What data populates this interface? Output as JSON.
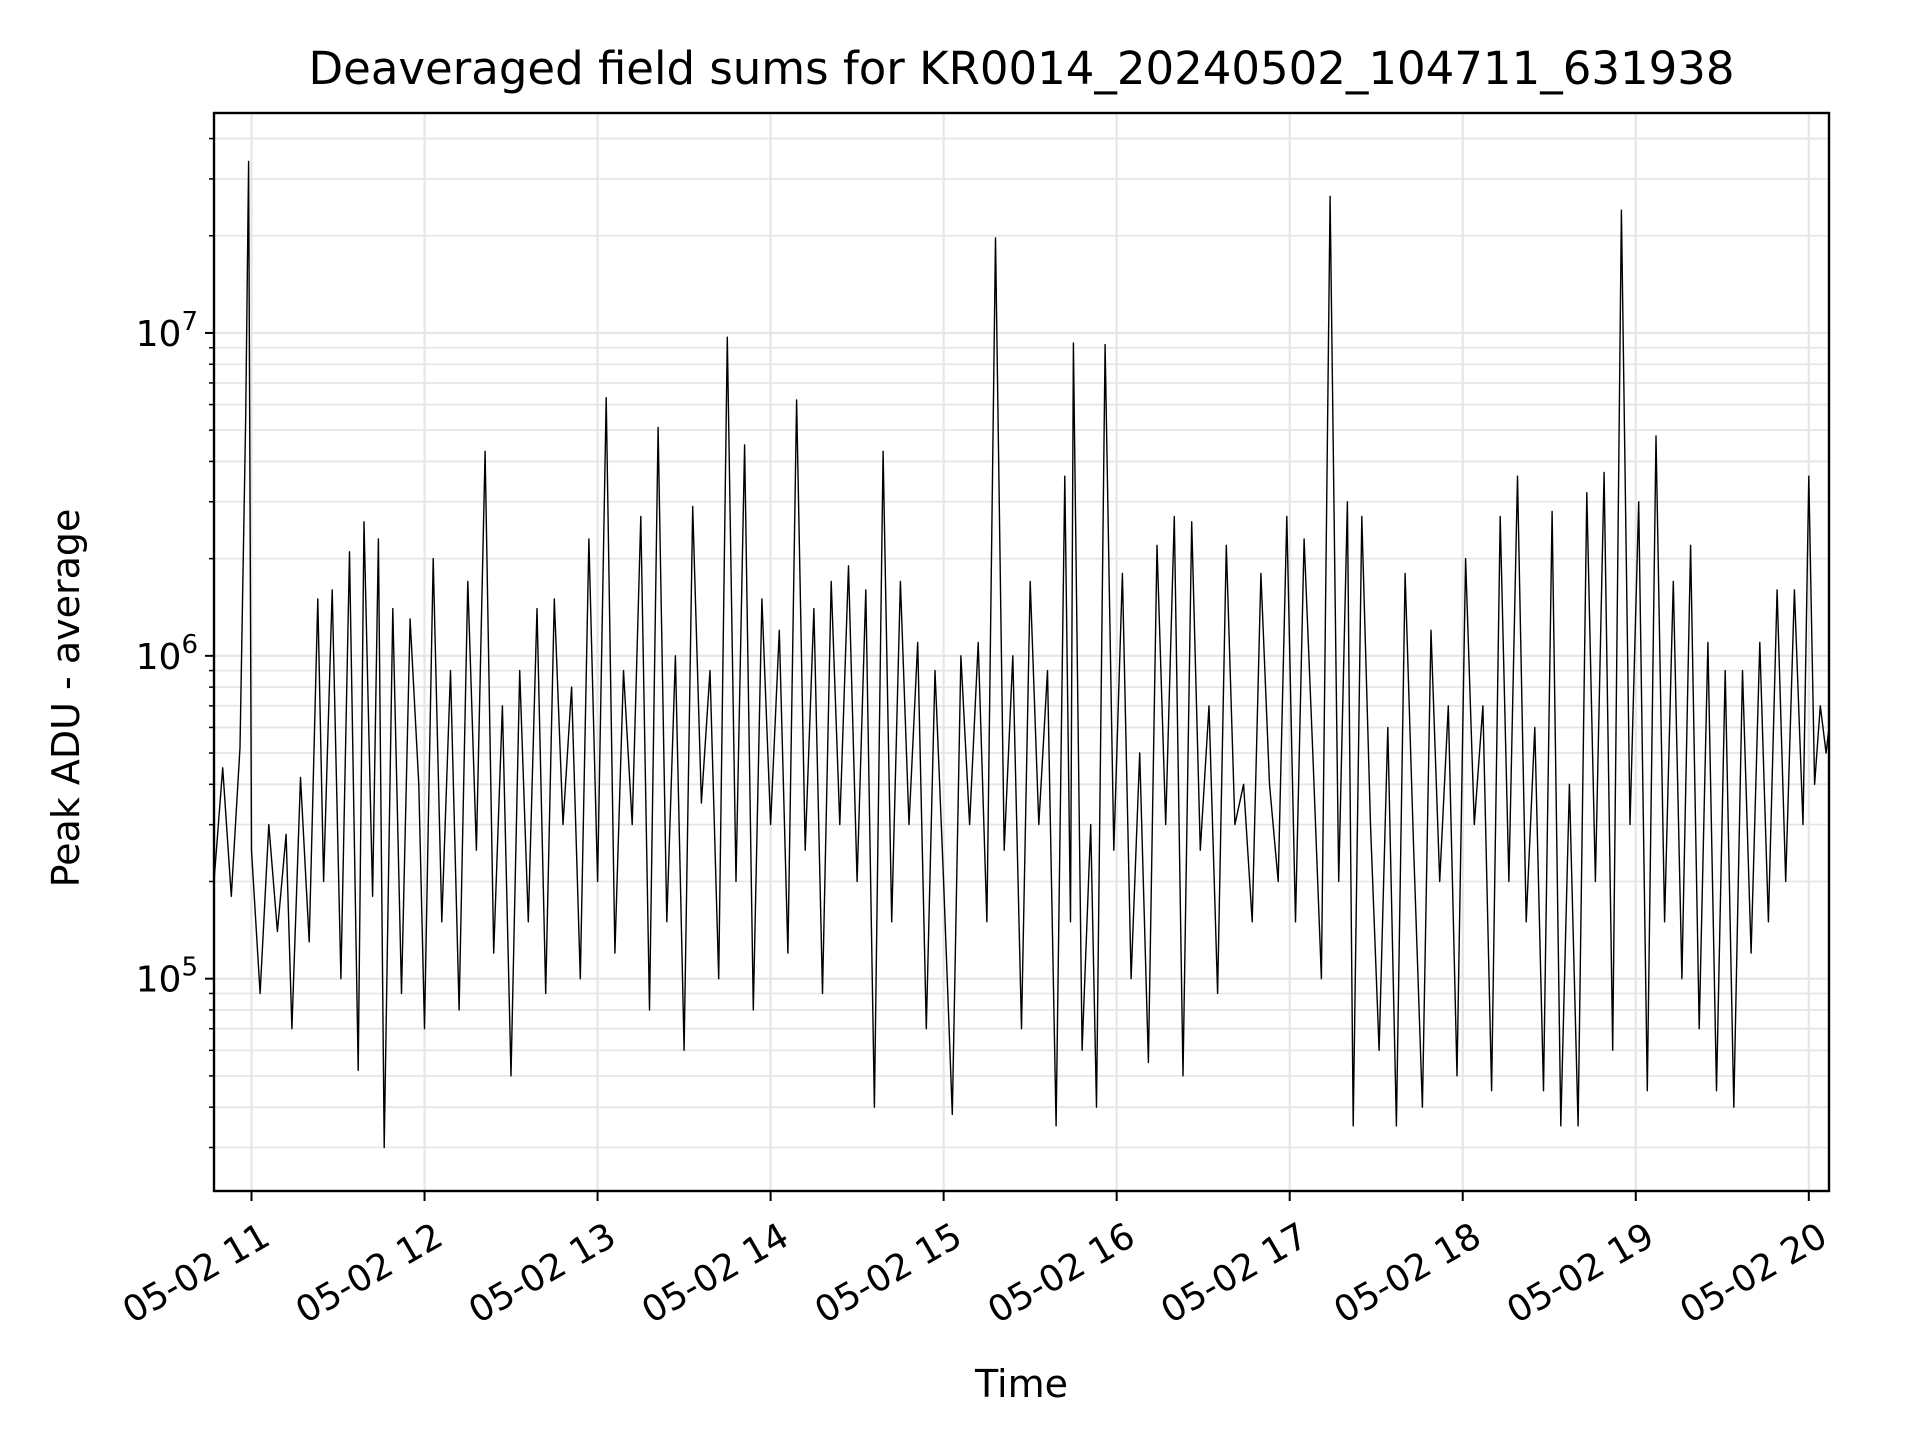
{
  "chart_data": {
    "type": "line",
    "title": "Deaveraged field sums for KR0014_20240502_104711_631938",
    "xlabel": "Time",
    "ylabel": "Peak ADU - average",
    "x_type": "datetime",
    "xlim": [
      "2024-05-02 10:47",
      "2024-05-02 20:07"
    ],
    "x_ticks": [
      "05-02 11",
      "05-02 12",
      "05-02 13",
      "05-02 14",
      "05-02 15",
      "05-02 16",
      "05-02 17",
      "05-02 18",
      "05-02 19",
      "05-02 20"
    ],
    "y_scale": "log",
    "ylim": [
      22000,
      48000000
    ],
    "y_ticks": [
      {
        "value": 100000,
        "base": "10",
        "exp": "5"
      },
      {
        "value": 1000000,
        "base": "10",
        "exp": "6"
      },
      {
        "value": 10000000,
        "base": "10",
        "exp": "7"
      }
    ],
    "grid": true,
    "line_color": "#000000",
    "grid_color": "#e6e6e6",
    "series": [
      {
        "points": [
          [
            "10:47",
            200000
          ],
          [
            "10:50",
            450000
          ],
          [
            "10:53",
            180000
          ],
          [
            "10:56",
            520000
          ],
          [
            "10:58",
            5500000
          ],
          [
            "10:59",
            34000000
          ],
          [
            "11:00",
            250000
          ],
          [
            "11:03",
            90000
          ],
          [
            "11:06",
            300000
          ],
          [
            "11:09",
            140000
          ],
          [
            "11:12",
            280000
          ],
          [
            "11:14",
            70000
          ],
          [
            "11:17",
            420000
          ],
          [
            "11:20",
            130000
          ],
          [
            "11:23",
            1500000
          ],
          [
            "11:25",
            200000
          ],
          [
            "11:28",
            1600000
          ],
          [
            "11:31",
            100000
          ],
          [
            "11:34",
            2100000
          ],
          [
            "11:37",
            52000
          ],
          [
            "11:39",
            2600000
          ],
          [
            "11:42",
            180000
          ],
          [
            "11:44",
            2300000
          ],
          [
            "11:46",
            30000
          ],
          [
            "11:49",
            1400000
          ],
          [
            "11:52",
            90000
          ],
          [
            "11:55",
            1300000
          ],
          [
            "11:58",
            400000
          ],
          [
            "12:00",
            70000
          ],
          [
            "12:03",
            2000000
          ],
          [
            "12:06",
            150000
          ],
          [
            "12:09",
            900000
          ],
          [
            "12:12",
            80000
          ],
          [
            "12:15",
            1700000
          ],
          [
            "12:18",
            250000
          ],
          [
            "12:21",
            4300000
          ],
          [
            "12:24",
            120000
          ],
          [
            "12:27",
            700000
          ],
          [
            "12:30",
            50000
          ],
          [
            "12:33",
            900000
          ],
          [
            "12:36",
            150000
          ],
          [
            "12:39",
            1400000
          ],
          [
            "12:42",
            90000
          ],
          [
            "12:45",
            1500000
          ],
          [
            "12:48",
            300000
          ],
          [
            "12:51",
            800000
          ],
          [
            "12:54",
            100000
          ],
          [
            "12:57",
            2300000
          ],
          [
            "13:00",
            200000
          ],
          [
            "13:03",
            6300000
          ],
          [
            "13:06",
            120000
          ],
          [
            "13:09",
            900000
          ],
          [
            "13:12",
            300000
          ],
          [
            "13:15",
            2700000
          ],
          [
            "13:18",
            80000
          ],
          [
            "13:21",
            5100000
          ],
          [
            "13:24",
            150000
          ],
          [
            "13:27",
            1000000
          ],
          [
            "13:30",
            60000
          ],
          [
            "13:33",
            2900000
          ],
          [
            "13:36",
            350000
          ],
          [
            "13:39",
            900000
          ],
          [
            "13:42",
            100000
          ],
          [
            "13:45",
            9700000
          ],
          [
            "13:48",
            200000
          ],
          [
            "13:51",
            4500000
          ],
          [
            "13:54",
            80000
          ],
          [
            "13:57",
            1500000
          ],
          [
            "14:00",
            300000
          ],
          [
            "14:03",
            1200000
          ],
          [
            "14:06",
            120000
          ],
          [
            "14:09",
            6200000
          ],
          [
            "14:12",
            250000
          ],
          [
            "14:15",
            1400000
          ],
          [
            "14:18",
            90000
          ],
          [
            "14:21",
            1700000
          ],
          [
            "14:24",
            300000
          ],
          [
            "14:27",
            1900000
          ],
          [
            "14:30",
            200000
          ],
          [
            "14:33",
            1600000
          ],
          [
            "14:36",
            40000
          ],
          [
            "14:39",
            4300000
          ],
          [
            "14:42",
            150000
          ],
          [
            "14:45",
            1700000
          ],
          [
            "14:48",
            300000
          ],
          [
            "14:51",
            1100000
          ],
          [
            "14:54",
            70000
          ],
          [
            "14:57",
            900000
          ],
          [
            "15:00",
            200000
          ],
          [
            "15:03",
            38000
          ],
          [
            "15:06",
            1000000
          ],
          [
            "15:09",
            300000
          ],
          [
            "15:12",
            1100000
          ],
          [
            "15:15",
            150000
          ],
          [
            "15:18",
            19700000
          ],
          [
            "15:21",
            250000
          ],
          [
            "15:24",
            1000000
          ],
          [
            "15:27",
            70000
          ],
          [
            "15:30",
            1700000
          ],
          [
            "15:33",
            300000
          ],
          [
            "15:36",
            900000
          ],
          [
            "15:39",
            35000
          ],
          [
            "15:42",
            3600000
          ],
          [
            "15:44",
            150000
          ],
          [
            "15:45",
            9300000
          ],
          [
            "15:48",
            60000
          ],
          [
            "15:51",
            300000
          ],
          [
            "15:53",
            40000
          ],
          [
            "15:56",
            9200000
          ],
          [
            "15:59",
            250000
          ],
          [
            "16:02",
            1800000
          ],
          [
            "16:05",
            100000
          ],
          [
            "16:08",
            500000
          ],
          [
            "16:11",
            55000
          ],
          [
            "16:14",
            2200000
          ],
          [
            "16:17",
            300000
          ],
          [
            "16:20",
            2700000
          ],
          [
            "16:23",
            50000
          ],
          [
            "16:26",
            2600000
          ],
          [
            "16:29",
            250000
          ],
          [
            "16:32",
            700000
          ],
          [
            "16:35",
            90000
          ],
          [
            "16:38",
            2200000
          ],
          [
            "16:41",
            300000
          ],
          [
            "16:44",
            400000
          ],
          [
            "16:47",
            150000
          ],
          [
            "16:50",
            1800000
          ],
          [
            "16:53",
            400000
          ],
          [
            "16:56",
            200000
          ],
          [
            "16:59",
            2700000
          ],
          [
            "17:02",
            150000
          ],
          [
            "17:05",
            2300000
          ],
          [
            "17:08",
            500000
          ],
          [
            "17:11",
            100000
          ],
          [
            "17:14",
            26500000
          ],
          [
            "17:17",
            200000
          ],
          [
            "17:20",
            3000000
          ],
          [
            "17:22",
            35000
          ],
          [
            "17:25",
            2700000
          ],
          [
            "17:28",
            300000
          ],
          [
            "17:31",
            60000
          ],
          [
            "17:34",
            600000
          ],
          [
            "17:37",
            35000
          ],
          [
            "17:40",
            1800000
          ],
          [
            "17:43",
            250000
          ],
          [
            "17:46",
            40000
          ],
          [
            "17:49",
            1200000
          ],
          [
            "17:52",
            200000
          ],
          [
            "17:55",
            700000
          ],
          [
            "17:58",
            50000
          ],
          [
            "18:01",
            2000000
          ],
          [
            "18:04",
            300000
          ],
          [
            "18:07",
            700000
          ],
          [
            "18:10",
            45000
          ],
          [
            "18:13",
            2700000
          ],
          [
            "18:16",
            200000
          ],
          [
            "18:19",
            3600000
          ],
          [
            "18:22",
            150000
          ],
          [
            "18:25",
            600000
          ],
          [
            "18:28",
            45000
          ],
          [
            "18:31",
            2800000
          ],
          [
            "18:34",
            35000
          ],
          [
            "18:37",
            400000
          ],
          [
            "18:40",
            35000
          ],
          [
            "18:43",
            3200000
          ],
          [
            "18:46",
            200000
          ],
          [
            "18:49",
            3700000
          ],
          [
            "18:52",
            60000
          ],
          [
            "18:55",
            24000000
          ],
          [
            "18:58",
            300000
          ],
          [
            "19:01",
            3000000
          ],
          [
            "19:04",
            45000
          ],
          [
            "19:07",
            4800000
          ],
          [
            "19:10",
            150000
          ],
          [
            "19:13",
            1700000
          ],
          [
            "19:16",
            100000
          ],
          [
            "19:19",
            2200000
          ],
          [
            "19:22",
            70000
          ],
          [
            "19:25",
            1100000
          ],
          [
            "19:28",
            45000
          ],
          [
            "19:31",
            900000
          ],
          [
            "19:34",
            40000
          ],
          [
            "19:37",
            900000
          ],
          [
            "19:40",
            120000
          ],
          [
            "19:43",
            1100000
          ],
          [
            "19:46",
            150000
          ],
          [
            "19:49",
            1600000
          ],
          [
            "19:52",
            200000
          ],
          [
            "19:55",
            1600000
          ],
          [
            "19:58",
            300000
          ],
          [
            "20:00",
            3600000
          ],
          [
            "20:02",
            400000
          ],
          [
            "20:04",
            700000
          ],
          [
            "20:06",
            500000
          ],
          [
            "20:07",
            600000
          ]
        ]
      }
    ]
  }
}
